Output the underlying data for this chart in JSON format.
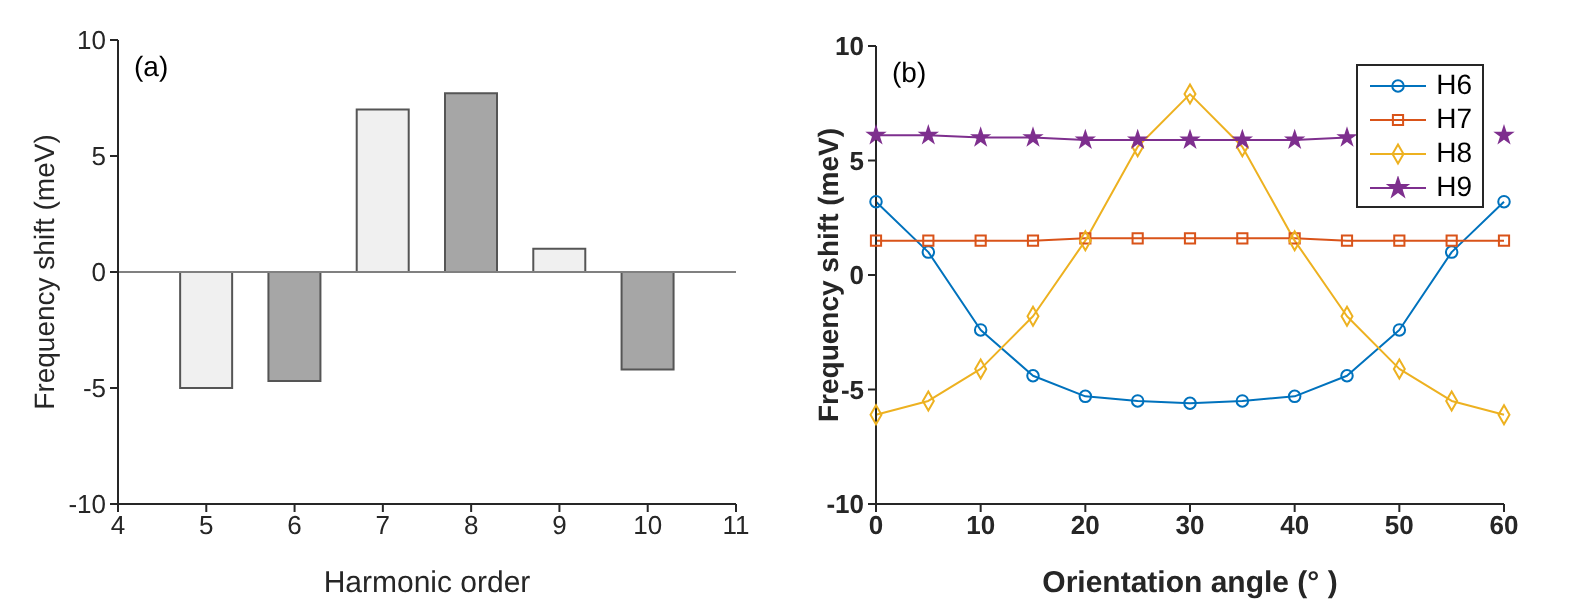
{
  "chart_data": [
    {
      "type": "bar",
      "x": [
        5,
        6,
        7,
        8,
        9,
        10
      ],
      "values": [
        -5,
        -4.7,
        7,
        7.7,
        1,
        -4.2
      ],
      "colors": [
        "#f0f0f0",
        "#a6a6a6",
        "#f0f0f0",
        "#a6a6a6",
        "#f0f0f0",
        "#a6a6a6"
      ],
      "xlim": [
        4,
        11
      ],
      "xticks": [
        4,
        5,
        6,
        7,
        8,
        9,
        10,
        11
      ],
      "ylim": [
        -10,
        10
      ],
      "yticks": [
        -10,
        -5,
        0,
        5,
        10
      ],
      "xlabel": "Harmonic order",
      "ylabel": "Frequency shift (meV)",
      "annotations": [
        "(a)"
      ]
    },
    {
      "type": "line",
      "x": [
        0,
        5,
        10,
        15,
        20,
        25,
        30,
        35,
        40,
        45,
        50,
        55,
        60
      ],
      "series": [
        {
          "name": "H6",
          "color": "#0072bd",
          "marker": "circle",
          "values": [
            3.2,
            1.0,
            -2.4,
            -4.4,
            -5.3,
            -5.5,
            -5.6,
            -5.5,
            -5.3,
            -4.4,
            -2.4,
            1.0,
            3.2
          ]
        },
        {
          "name": "H7",
          "color": "#d95319",
          "marker": "square",
          "values": [
            1.5,
            1.5,
            1.5,
            1.5,
            1.6,
            1.6,
            1.6,
            1.6,
            1.6,
            1.5,
            1.5,
            1.5,
            1.5
          ]
        },
        {
          "name": "H8",
          "color": "#edb120",
          "marker": "diamond",
          "values": [
            -6.1,
            -5.5,
            -4.1,
            -1.8,
            1.5,
            5.6,
            7.9,
            5.6,
            1.5,
            -1.8,
            -4.1,
            -5.5,
            -6.1
          ]
        },
        {
          "name": "H9",
          "color": "#7e2f8e",
          "marker": "star",
          "values": [
            6.1,
            6.1,
            6.0,
            6.0,
            5.9,
            5.9,
            5.9,
            5.9,
            5.9,
            6.0,
            null,
            null,
            6.1
          ]
        }
      ],
      "xlim": [
        0,
        60
      ],
      "xticks": [
        0,
        10,
        20,
        30,
        40,
        50,
        60
      ],
      "ylim": [
        -10,
        10
      ],
      "yticks": [
        -10,
        -5,
        0,
        5,
        10
      ],
      "xlabel": "Orientation angle (° )",
      "ylabel": "Frequency shift (meV)",
      "annotations": [
        "(b)"
      ],
      "legend": "top right"
    }
  ]
}
